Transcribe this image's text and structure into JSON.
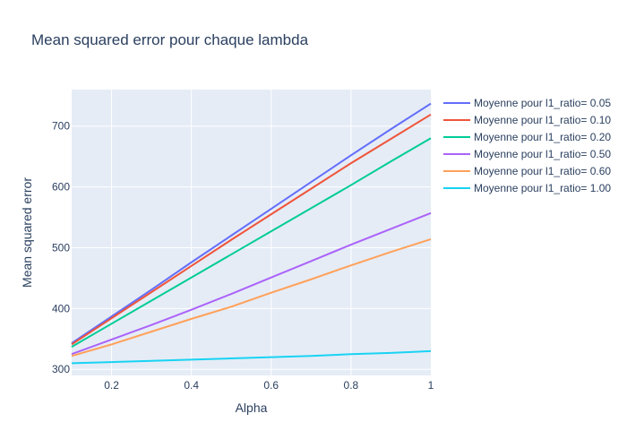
{
  "chart_data": {
    "type": "line",
    "title": "Mean squared error pour chaque lambda",
    "xlabel": "Alpha",
    "ylabel": "Mean squared error",
    "xlim": [
      0.1,
      1.0
    ],
    "ylim": [
      290,
      760
    ],
    "x_ticks": [
      0.2,
      0.4,
      0.6,
      0.8,
      1.0
    ],
    "x_tick_labels": [
      "0.2",
      "0.4",
      "0.6",
      "0.8",
      "1"
    ],
    "y_ticks": [
      300,
      400,
      500,
      600,
      700
    ],
    "y_tick_labels": [
      "300",
      "400",
      "500",
      "600",
      "700"
    ],
    "grid": true,
    "legend_position": "right",
    "x": [
      0.1,
      0.2,
      0.3,
      0.4,
      0.5,
      0.6,
      0.7,
      0.8,
      0.9,
      1.0
    ],
    "series": [
      {
        "name": "Moyenne pour l1_ratio= 0.05",
        "color": "#636efa",
        "values": [
          343,
          387,
          431,
          476,
          520,
          564,
          608,
          652,
          695,
          737
        ]
      },
      {
        "name": "Moyenne pour l1_ratio= 0.10",
        "color": "#ef553b",
        "values": [
          341,
          384,
          427,
          470,
          513,
          555,
          597,
          639,
          679,
          719
        ]
      },
      {
        "name": "Moyenne pour l1_ratio= 0.20",
        "color": "#00cc96",
        "values": [
          337,
          375,
          413,
          451,
          489,
          527,
          565,
          603,
          642,
          680
        ]
      },
      {
        "name": "Moyenne pour l1_ratio= 0.50",
        "color": "#ab63fa",
        "values": [
          325,
          349,
          373,
          398,
          424,
          451,
          478,
          505,
          531,
          557
        ]
      },
      {
        "name": "Moyenne pour l1_ratio= 0.60",
        "color": "#ffa15a",
        "values": [
          322,
          341,
          362,
          383,
          403,
          426,
          448,
          471,
          493,
          514
        ]
      },
      {
        "name": "Moyenne pour l1_ratio= 1.00",
        "color": "#19d3f3",
        "values": [
          310,
          312,
          314,
          316,
          318,
          320,
          322,
          325,
          327,
          330
        ]
      }
    ]
  }
}
